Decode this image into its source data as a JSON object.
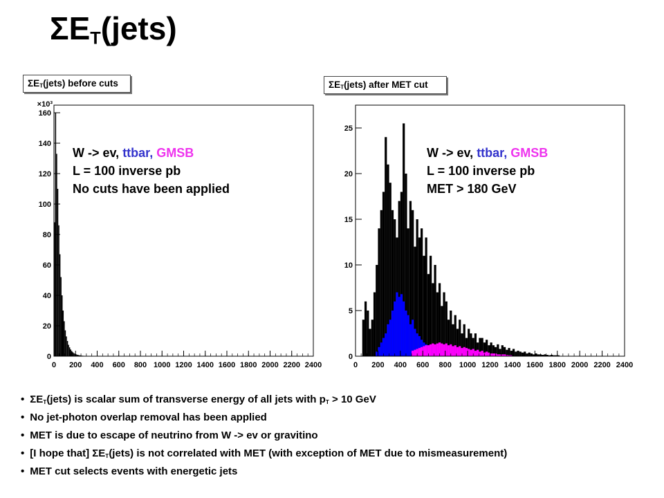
{
  "slide": {
    "title_main": "ΣE",
    "title_sub": "T",
    "title_tail": "(jets)"
  },
  "annotations": {
    "left": {
      "line1_part1": "W -> ev, ",
      "line1_part2": "ttbar, ",
      "line1_part3": "GMSB",
      "line2": "L = 100 inverse pb",
      "line3": "No cuts have been applied"
    },
    "right": {
      "line1_part1": "W -> ev, ",
      "line1_part2": "ttbar, ",
      "line1_part3": "GMSB",
      "line2": "L = 100 inverse pb",
      "line3": "MET > 180 GeV"
    }
  },
  "bullets": [
    {
      "pre": "ΣE",
      "sub": "T",
      "mid": "(jets) is scalar sum of transverse energy of all jets with p",
      "sub2": "T",
      "post": " > 10 GeV"
    },
    {
      "pre": "No jet-photon overlap removal has been applied",
      "sub": "",
      "mid": "",
      "sub2": "",
      "post": ""
    },
    {
      "pre": "MET is due to escape of neutrino from W -> ev or gravitino",
      "sub": "",
      "mid": "",
      "sub2": "",
      "post": ""
    },
    {
      "pre": "[I hope that] ΣE",
      "sub": "T",
      "mid": "(jets) is not correlated with MET (with exception of MET due to mismeasurement)",
      "sub2": "",
      "post": ""
    },
    {
      "pre": "MET cut selects events with energetic jets",
      "sub": "",
      "mid": "",
      "sub2": "",
      "post": ""
    }
  ],
  "chart_data": [
    {
      "type": "bar",
      "title_main": "ΣE",
      "title_sub": "T",
      "title_tail": "(jets) before cuts",
      "xlim": [
        0,
        2400
      ],
      "ylim": [
        0,
        165
      ],
      "y_exponent_label": "×10³",
      "xticks": [
        0,
        200,
        400,
        600,
        800,
        1000,
        1200,
        1400,
        1600,
        1800,
        2000,
        2200,
        2400
      ],
      "yticks": [
        0,
        20,
        40,
        60,
        80,
        100,
        120,
        140,
        160
      ],
      "bin_width": 10,
      "series": [
        {
          "color": "#000000",
          "x_start": 0,
          "values": [
            88,
            160,
            133,
            110,
            86,
            67,
            52,
            40,
            30,
            23,
            17,
            13,
            10,
            7.5,
            5.8,
            4.4,
            3.4,
            2.6,
            2.0,
            1.6,
            1.25,
            1.0,
            0.8,
            0.6,
            0.5,
            0.4,
            0.32,
            0.26,
            0.2,
            0.16,
            0.13,
            0.1,
            0.08,
            0.06
          ]
        }
      ]
    },
    {
      "type": "bar",
      "title_main": "ΣE",
      "title_sub": "T",
      "title_tail": "(jets) after MET cut",
      "xlim": [
        0,
        2400
      ],
      "ylim": [
        0,
        27.5
      ],
      "xticks": [
        0,
        200,
        400,
        600,
        800,
        1000,
        1200,
        1400,
        1600,
        1800,
        2000,
        2200,
        2400
      ],
      "yticks": [
        0,
        5,
        10,
        15,
        20,
        25
      ],
      "bin_width": 20,
      "series": [
        {
          "color": "#000000",
          "x_start": 60,
          "values": [
            4,
            6,
            5,
            3,
            4,
            7,
            10,
            14,
            16,
            18,
            24,
            21,
            19,
            16,
            15,
            13,
            17,
            18,
            25.5,
            20,
            14,
            17,
            16,
            12,
            15,
            13,
            14,
            11,
            13,
            9,
            11,
            8,
            10,
            7,
            8,
            5.5,
            7,
            6,
            4,
            5,
            3.5,
            4.5,
            3,
            4,
            2.5,
            3.5,
            2,
            3,
            2.5,
            2,
            2.5,
            1.5,
            2,
            2,
            1.5,
            1.8,
            1.2,
            1.5,
            1.2,
            1,
            1.3,
            0.8,
            1.2,
            1,
            0.7,
            0.9,
            0.6,
            0.8,
            0.5,
            0.6,
            0.5,
            0.4,
            0.5,
            0.3,
            0.4,
            0.3,
            0.2,
            0.3,
            0.2,
            0.2,
            0.15,
            0.2,
            0.15,
            0.1,
            0.15,
            0.1,
            0.1,
            0.1
          ]
        },
        {
          "color": "#0000ff",
          "x_start": 180,
          "values": [
            0.5,
            1,
            1.5,
            2,
            2.5,
            3.5,
            4,
            5,
            6,
            7,
            6.5,
            6.8,
            6,
            5,
            4.5,
            3.5,
            4,
            3,
            2.5,
            2.2,
            1.8,
            1.5,
            1.3,
            1.2,
            1,
            0.9,
            0.8,
            0.7,
            0.6,
            0.5
          ]
        },
        {
          "color": "#ff00ff",
          "x_start": 500,
          "values": [
            0.6,
            0.7,
            0.8,
            0.9,
            1,
            1.1,
            1.2,
            1.2,
            1.3,
            1.4,
            1.3,
            1.4,
            1.5,
            1.4,
            1.3,
            1.4,
            1.2,
            1.3,
            1.1,
            1.2,
            1,
            1.1,
            0.9,
            1,
            0.9,
            0.8,
            0.7,
            0.8,
            0.6,
            0.7,
            0.5,
            0.6,
            0.4,
            0.5,
            0.4,
            0.3,
            0.3,
            0.3,
            0.2,
            0.2,
            0.2,
            0.2,
            0.15,
            0.1,
            0.1
          ]
        }
      ]
    }
  ]
}
